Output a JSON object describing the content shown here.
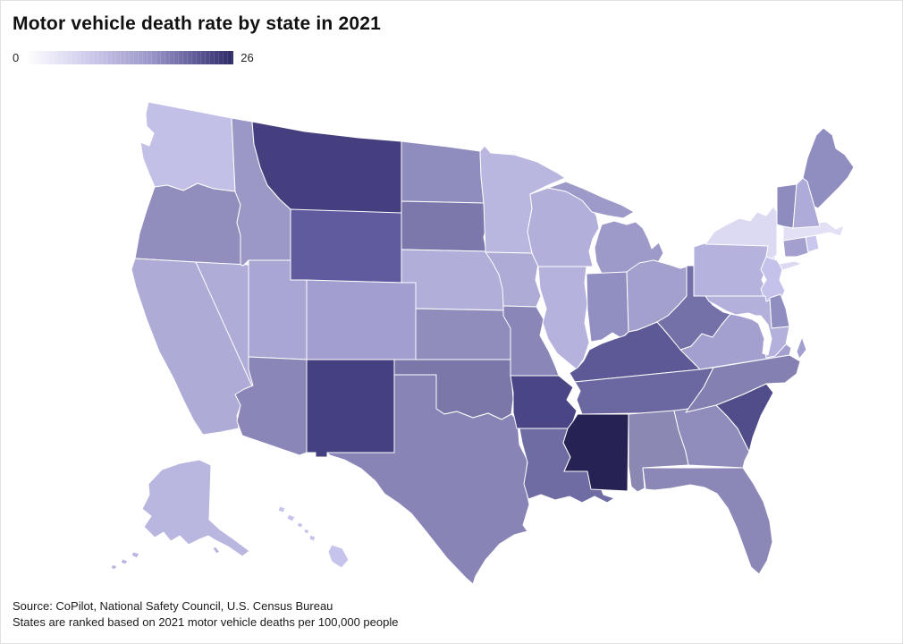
{
  "header": {
    "title": "Motor vehicle death rate by state in 2021"
  },
  "legend": {
    "min_label": "0",
    "max_label": "26",
    "gradient_stops": [
      "#ffffff",
      "#cecbec",
      "#9b97c9",
      "#565290",
      "#2e2a68"
    ]
  },
  "footer": {
    "source_line": "Source: CoPilot, National Safety Council, U.S. Census Bureau",
    "note_line": "States are ranked based on 2021 motor vehicle deaths per 100,000 people"
  },
  "chart_data": {
    "type": "choropleth_map",
    "region": "United States",
    "title": "Motor vehicle death rate by state in 2021",
    "unit": "motor vehicle deaths per 100,000 people",
    "year": 2021,
    "color_scale": {
      "min": 0,
      "max": 26,
      "min_color": "#ffffff",
      "max_color": "#2e2a68"
    },
    "states": [
      {
        "abbr": "WA",
        "name": "Washington",
        "value": 5.7,
        "color": "#c3c0e8"
      },
      {
        "abbr": "OR",
        "name": "Oregon",
        "value": 12.4,
        "color": "#918dbd"
      },
      {
        "abbr": "CA",
        "name": "California",
        "value": 8.2,
        "color": "#aeabd7"
      },
      {
        "abbr": "NV",
        "name": "Nevada",
        "value": 8.0,
        "color": "#b0acd8"
      },
      {
        "abbr": "ID",
        "name": "Idaho",
        "value": 10.9,
        "color": "#9c98c6"
      },
      {
        "abbr": "MT",
        "name": "Montana",
        "value": 22.3,
        "color": "#453f80"
      },
      {
        "abbr": "WY",
        "name": "Wyoming",
        "value": 18.9,
        "color": "#5f5b9e"
      },
      {
        "abbr": "UT",
        "name": "Utah",
        "value": 8.8,
        "color": "#aaa6d4"
      },
      {
        "abbr": "CO",
        "name": "Colorado",
        "value": 9.8,
        "color": "#a29ecf"
      },
      {
        "abbr": "AZ",
        "name": "Arizona",
        "value": 13.3,
        "color": "#8a86b7"
      },
      {
        "abbr": "NM",
        "name": "New Mexico",
        "value": 22.2,
        "color": "#454180"
      },
      {
        "abbr": "ND",
        "name": "North Dakota",
        "value": 12.5,
        "color": "#8f8cbe"
      },
      {
        "abbr": "SD",
        "name": "South Dakota",
        "value": 15.2,
        "color": "#7c78ac"
      },
      {
        "abbr": "NE",
        "name": "Nebraska",
        "value": 7.9,
        "color": "#b1aed9"
      },
      {
        "abbr": "KS",
        "name": "Kansas",
        "value": 12.4,
        "color": "#908dbd"
      },
      {
        "abbr": "OK",
        "name": "Oklahoma",
        "value": 15.3,
        "color": "#7b77a9"
      },
      {
        "abbr": "TX",
        "name": "Texas",
        "value": 13.5,
        "color": "#8885b6"
      },
      {
        "abbr": "MN",
        "name": "Minnesota",
        "value": 7.0,
        "color": "#b9b6e0"
      },
      {
        "abbr": "IA",
        "name": "Iowa",
        "value": 8.2,
        "color": "#aeabd7"
      },
      {
        "abbr": "MO",
        "name": "Missouri",
        "value": 13.2,
        "color": "#8a86b8"
      },
      {
        "abbr": "AR",
        "name": "Arkansas",
        "value": 21.6,
        "color": "#4a4685"
      },
      {
        "abbr": "LA",
        "name": "Louisiana",
        "value": 16.9,
        "color": "#6f6ba3"
      },
      {
        "abbr": "WI",
        "name": "Wisconsin",
        "value": 7.8,
        "color": "#b2afdb"
      },
      {
        "abbr": "IL",
        "name": "Illinois",
        "value": 7.5,
        "color": "#b5b2dd"
      },
      {
        "abbr": "MI",
        "name": "Michigan",
        "value": 10.7,
        "color": "#9d9ac9"
      },
      {
        "abbr": "IN",
        "name": "Indiana",
        "value": 12.2,
        "color": "#918ec1"
      },
      {
        "abbr": "OH",
        "name": "Ohio",
        "value": 9.7,
        "color": "#a3a0ce"
      },
      {
        "abbr": "KY",
        "name": "Kentucky",
        "value": 19.1,
        "color": "#5d5996"
      },
      {
        "abbr": "TN",
        "name": "Tennessee",
        "value": 17.4,
        "color": "#6b67a0"
      },
      {
        "abbr": "MS",
        "name": "Mississippi",
        "value": 26.0,
        "color": "#262253"
      },
      {
        "abbr": "AL",
        "name": "Alabama",
        "value": 13.2,
        "color": "#8b88b3"
      },
      {
        "abbr": "GA",
        "name": "Georgia",
        "value": 12.5,
        "color": "#908dbc"
      },
      {
        "abbr": "FL",
        "name": "Florida",
        "value": 13.1,
        "color": "#8b88b8"
      },
      {
        "abbr": "SC",
        "name": "South Carolina",
        "value": 20.5,
        "color": "#514d8a"
      },
      {
        "abbr": "NC",
        "name": "North Carolina",
        "value": 14.1,
        "color": "#8481b2"
      },
      {
        "abbr": "VA",
        "name": "Virginia",
        "value": 9.7,
        "color": "#a3a0d0"
      },
      {
        "abbr": "WV",
        "name": "West Virginia",
        "value": 16.2,
        "color": "#7470a8"
      },
      {
        "abbr": "PA",
        "name": "Pennsylvania",
        "value": 7.5,
        "color": "#b5b2dd"
      },
      {
        "abbr": "NY",
        "name": "New York",
        "value": 3.0,
        "color": "#dcdaf2"
      },
      {
        "abbr": "NJ",
        "name": "New Jersey",
        "value": 5.6,
        "color": "#c4c2ea"
      },
      {
        "abbr": "DE",
        "name": "Delaware",
        "value": 12.4,
        "color": "#908dc0"
      },
      {
        "abbr": "MD",
        "name": "Maryland",
        "value": 7.7,
        "color": "#b3b0dc"
      },
      {
        "abbr": "CT",
        "name": "Connecticut",
        "value": 9.7,
        "color": "#a3a0cd"
      },
      {
        "abbr": "RI",
        "name": "Rhode Island",
        "value": 5.0,
        "color": "#c9c7ee"
      },
      {
        "abbr": "MA",
        "name": "Massachusetts",
        "value": 2.5,
        "color": "#e2e0f5"
      },
      {
        "abbr": "VT",
        "name": "Vermont",
        "value": 12.6,
        "color": "#8e8bbe"
      },
      {
        "abbr": "NH",
        "name": "New Hampshire",
        "value": 8.2,
        "color": "#aeabd8"
      },
      {
        "abbr": "ME",
        "name": "Maine",
        "value": 12.4,
        "color": "#908dc1"
      },
      {
        "abbr": "AK",
        "name": "Alaska",
        "value": 7.0,
        "color": "#b9b6e0"
      },
      {
        "abbr": "HI",
        "name": "Hawaii",
        "value": 5.3,
        "color": "#c6c3ed"
      }
    ]
  }
}
